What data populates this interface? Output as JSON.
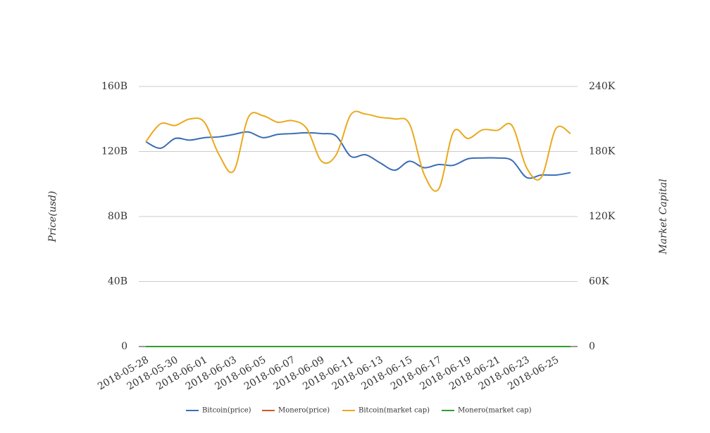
{
  "chart_data": {
    "type": "line",
    "categories": [
      "2018-05-28",
      null,
      "2018-05-30",
      null,
      "2018-06-01",
      null,
      "2018-06-03",
      null,
      "2018-06-05",
      null,
      "2018-06-07",
      null,
      "2018-06-09",
      null,
      "2018-06-11",
      null,
      "2018-06-13",
      null,
      "2018-06-15",
      null,
      "2018-06-17",
      null,
      "2018-06-19",
      null,
      "2018-06-21",
      null,
      "2018-06-23",
      null,
      "2018-06-25",
      null
    ],
    "ylabel": "Price(usd)",
    "y2label": "Market Capital",
    "ylim": [
      0,
      160
    ],
    "yticks": [
      0,
      {
        "value": 40,
        "label": "40B"
      },
      {
        "value": 80,
        "label": "80B"
      },
      {
        "value": 120,
        "label": "120B"
      },
      {
        "value": 160,
        "label": "160B"
      }
    ],
    "y2lim": [
      0,
      240
    ],
    "y2ticks": [
      0,
      {
        "value": 60,
        "label": "60K"
      },
      {
        "value": 120,
        "label": "120K"
      },
      {
        "value": 180,
        "label": "180K"
      },
      {
        "value": 240,
        "label": "240K"
      }
    ],
    "grid": true,
    "legend": "bottom",
    "series": [
      {
        "name": "Bitcoin(price)",
        "color": "#3a6db5",
        "values": [
          126,
          122,
          128,
          127,
          128.5,
          129,
          130.5,
          132,
          128.5,
          130.5,
          131,
          131.5,
          131,
          129.5,
          117,
          118,
          113,
          108.5,
          114,
          110,
          112,
          111.5,
          115.5,
          116,
          116,
          114.5,
          104,
          105.5,
          105.5,
          107
        ]
      },
      {
        "name": "Monero(price)",
        "color": "#d9541e",
        "values": [
          0,
          0,
          0,
          0,
          0,
          0,
          0,
          0,
          0,
          0,
          0,
          0,
          0,
          0,
          0,
          0,
          0,
          0,
          0,
          0,
          0,
          0,
          0,
          0,
          0,
          0,
          0,
          0,
          0,
          0
        ]
      },
      {
        "name": "Bitcoin(market cap)",
        "color": "#eaa91c",
        "axis": "y2",
        "values": [
          189,
          205.5,
          204,
          210,
          207,
          177,
          162,
          211.5,
          213,
          207,
          208.5,
          201,
          171,
          177,
          214,
          214.5,
          211.5,
          210,
          205.5,
          159,
          145.5,
          198,
          192,
          200,
          199.5,
          204,
          165,
          156,
          201,
          196.5
        ]
      },
      {
        "name": "Monero(market cap)",
        "color": "#2ca02c",
        "axis": "y2",
        "values": [
          0,
          0,
          0,
          0,
          0,
          0,
          0,
          0,
          0,
          0,
          0,
          0,
          0,
          0,
          0,
          0,
          0,
          0,
          0,
          0,
          0,
          0,
          0,
          0,
          0,
          0,
          0,
          0,
          0,
          0
        ]
      }
    ]
  }
}
